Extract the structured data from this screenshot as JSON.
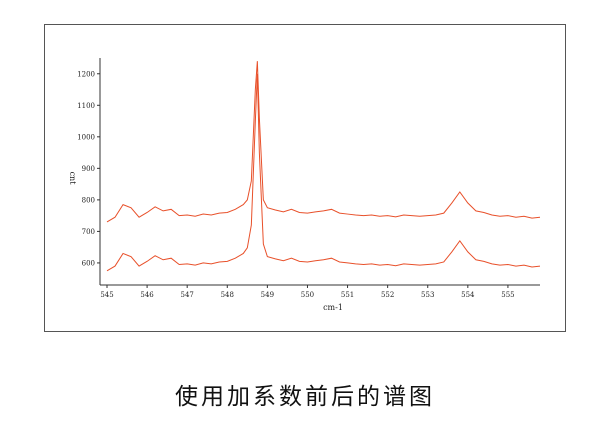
{
  "chart_data": {
    "type": "line",
    "title": "使用加系数前后的谱图",
    "xlabel": "cm-1",
    "ylabel": "cnt",
    "x": [
      545.0,
      545.2,
      545.4,
      545.6,
      545.8,
      546.0,
      546.2,
      546.4,
      546.6,
      546.8,
      547.0,
      547.2,
      547.4,
      547.6,
      547.8,
      548.0,
      548.2,
      548.4,
      548.5,
      548.6,
      548.7,
      548.75,
      548.8,
      548.9,
      549.0,
      549.2,
      549.4,
      549.6,
      549.8,
      550.0,
      550.2,
      550.4,
      550.6,
      550.8,
      551.0,
      551.2,
      551.4,
      551.6,
      551.8,
      552.0,
      552.2,
      552.4,
      552.6,
      552.8,
      553.0,
      553.2,
      553.4,
      553.6,
      553.8,
      554.0,
      554.2,
      554.4,
      554.6,
      554.8,
      555.0,
      555.2,
      555.4,
      555.6,
      555.8
    ],
    "series": [
      {
        "color": "#e8502a",
        "values": [
          730,
          745,
          785,
          775,
          745,
          760,
          778,
          765,
          770,
          750,
          752,
          748,
          755,
          752,
          758,
          760,
          770,
          785,
          800,
          860,
          1150,
          1240,
          1060,
          800,
          775,
          768,
          762,
          770,
          760,
          758,
          762,
          765,
          770,
          758,
          755,
          752,
          750,
          752,
          748,
          750,
          746,
          752,
          750,
          748,
          750,
          752,
          758,
          790,
          825,
          790,
          765,
          760,
          752,
          748,
          750,
          745,
          748,
          742,
          745
        ]
      },
      {
        "color": "#e8502a",
        "values": [
          575,
          590,
          630,
          620,
          590,
          605,
          623,
          610,
          615,
          595,
          597,
          593,
          600,
          597,
          603,
          605,
          615,
          630,
          648,
          720,
          1050,
          1200,
          950,
          660,
          620,
          613,
          607,
          615,
          605,
          603,
          607,
          610,
          615,
          603,
          600,
          597,
          595,
          597,
          593,
          595,
          591,
          597,
          595,
          593,
          595,
          597,
          603,
          635,
          670,
          635,
          610,
          605,
          597,
          593,
          595,
          590,
          593,
          587,
          590
        ]
      }
    ],
    "xlim": [
      545,
      555.8
    ],
    "ylim": [
      530,
      1250
    ],
    "xticks": [
      545,
      546,
      547,
      548,
      549,
      550,
      551,
      552,
      553,
      554,
      555
    ],
    "yticks": [
      600,
      700,
      800,
      900,
      1000,
      1100,
      1200
    ]
  }
}
